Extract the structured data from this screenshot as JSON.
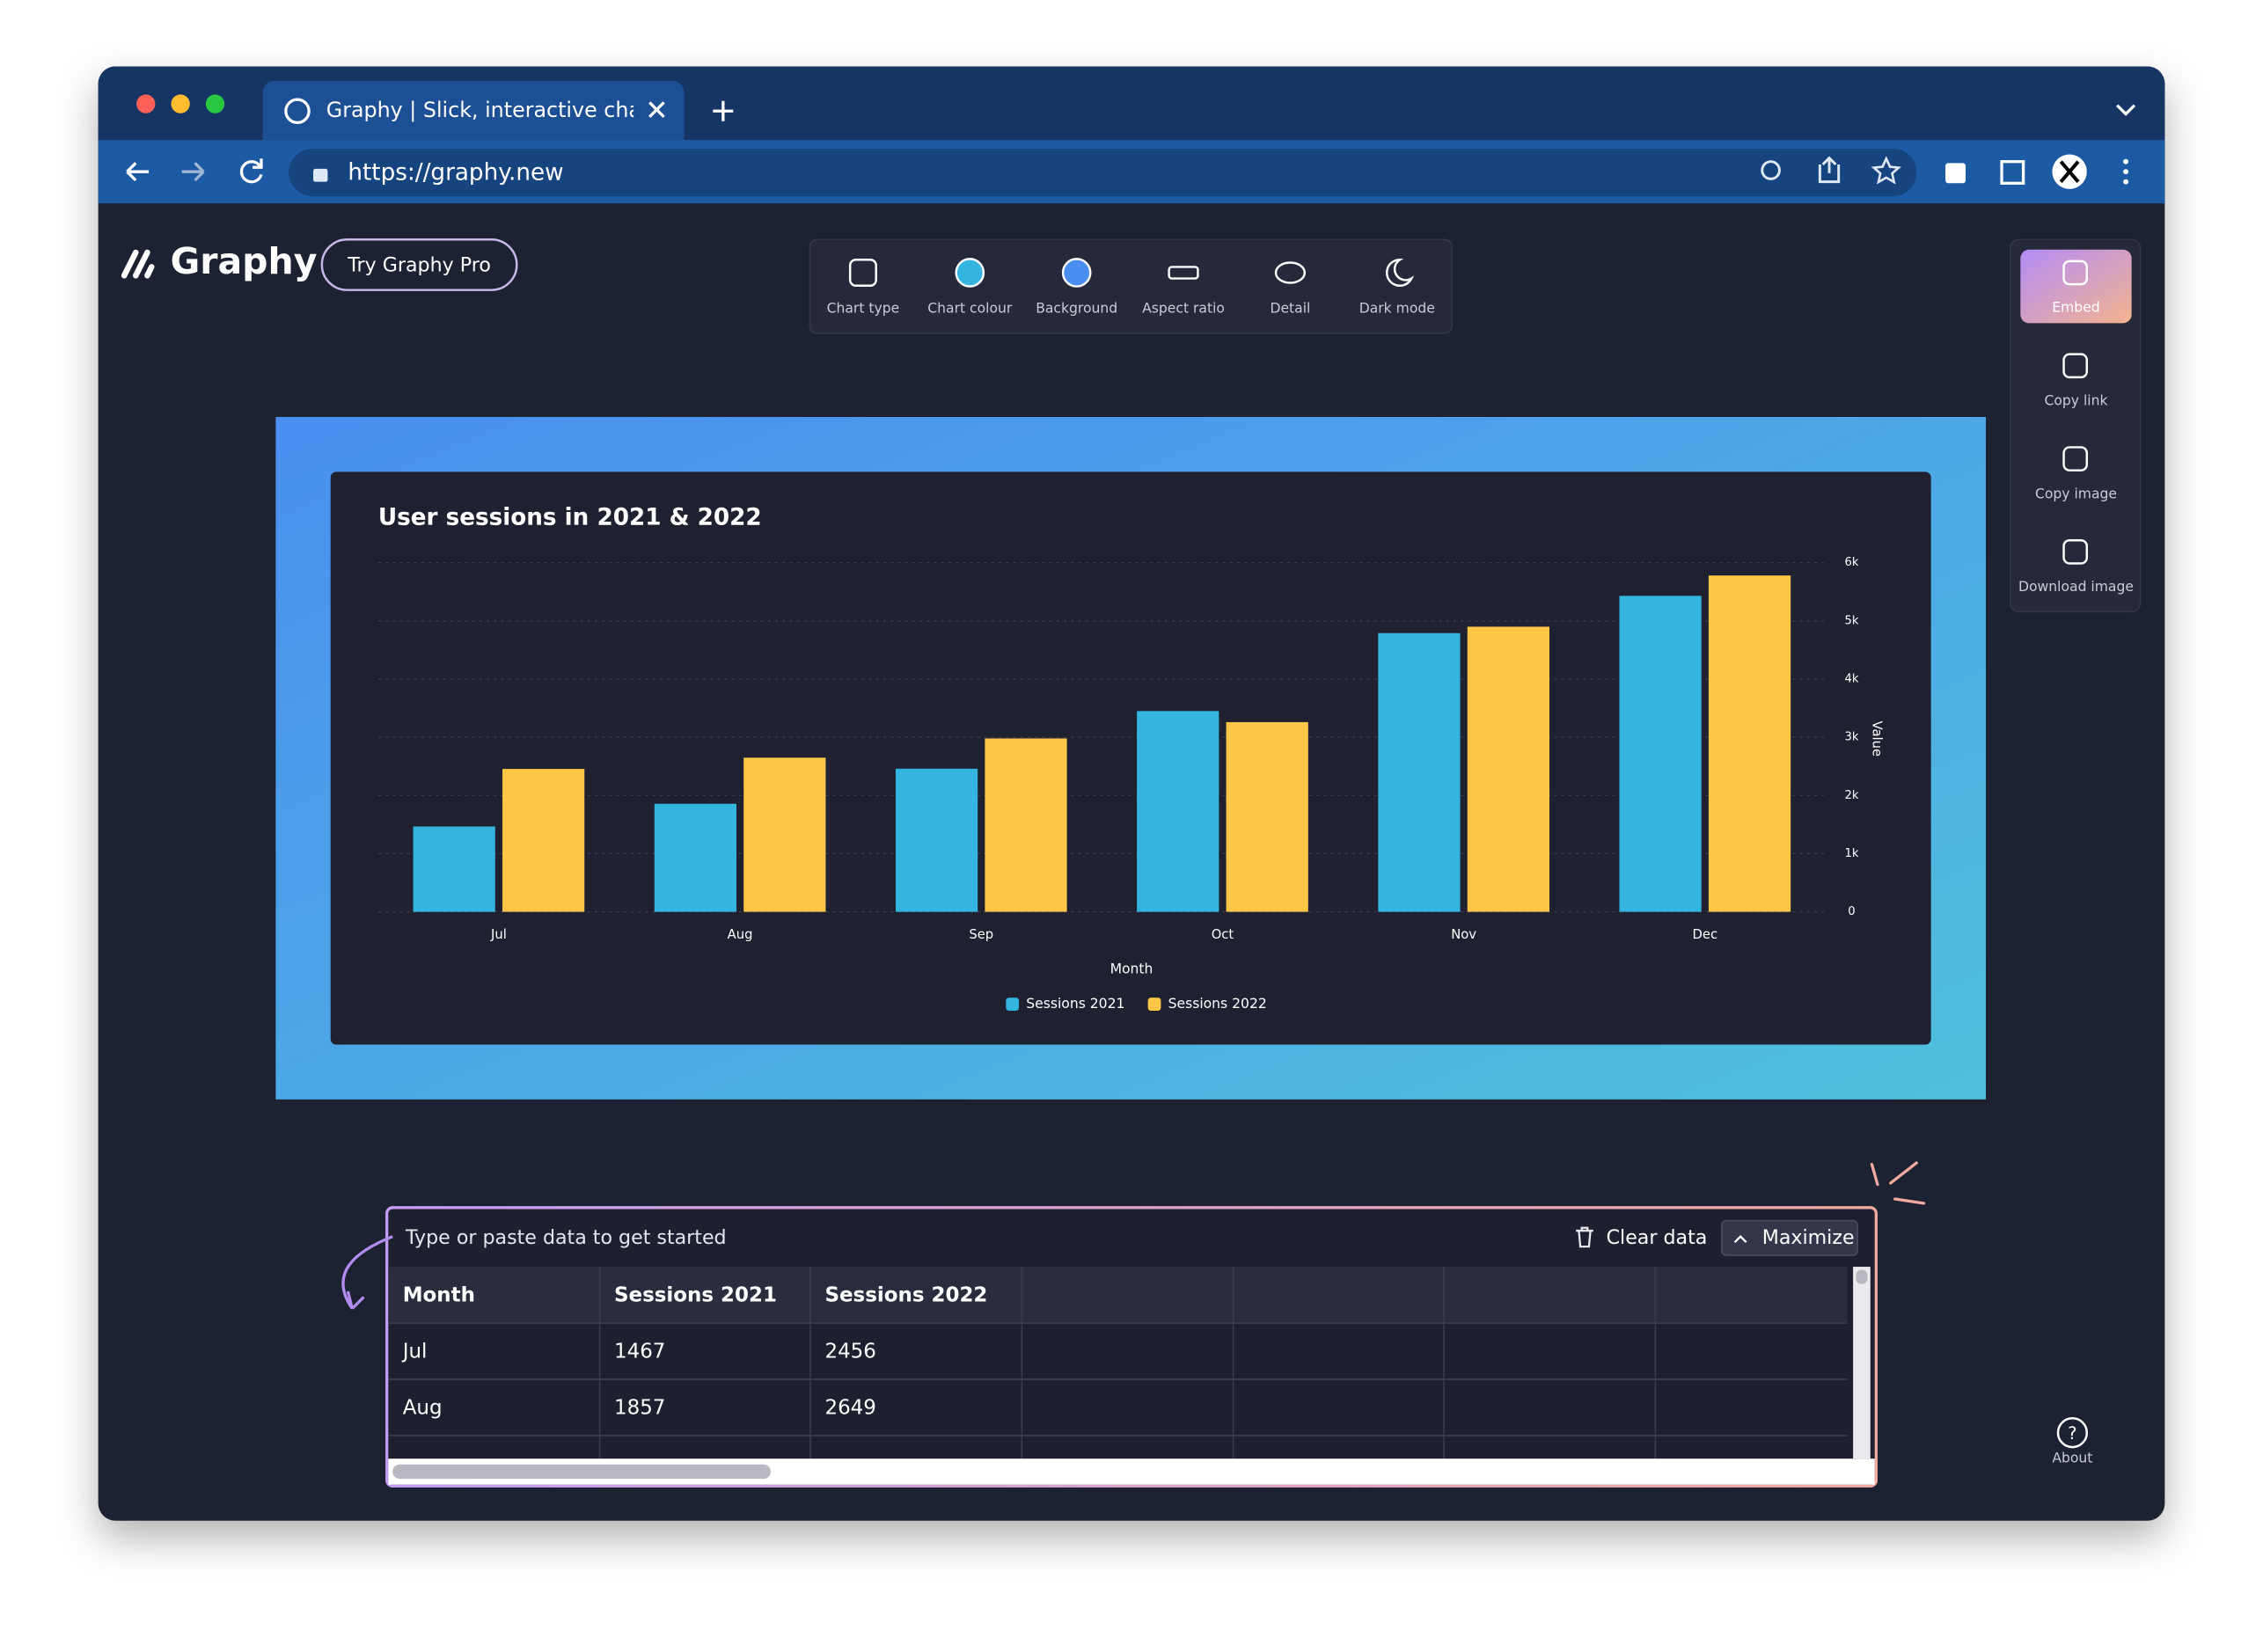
{
  "browser": {
    "tab_title": "Graphy | Slick, interactive chart",
    "url": "https://graphy.new"
  },
  "app": {
    "logo": "Graphy",
    "pro_button": "Try Graphy Pro",
    "toolbar": [
      "Chart type",
      "Chart colour",
      "Background",
      "Aspect ratio",
      "Detail",
      "Dark mode"
    ],
    "side_actions": [
      "Embed",
      "Copy link",
      "Copy image",
      "Download image"
    ],
    "about": "About"
  },
  "chart_data": {
    "type": "bar",
    "title": "User sessions in 2021 & 2022",
    "categories": [
      "Jul",
      "Aug",
      "Sep",
      "Oct",
      "Nov",
      "Dec"
    ],
    "series": [
      {
        "name": "Sessions 2021",
        "color": "#33b5e0",
        "values": [
          1467,
          1857,
          2460,
          3450,
          4790,
          5430
        ]
      },
      {
        "name": "Sessions 2022",
        "color": "#fdc647",
        "values": [
          2456,
          2649,
          2980,
          3260,
          4900,
          5780
        ]
      }
    ],
    "x_label": "Month",
    "y_label": "Value",
    "ylim": [
      0,
      6000
    ],
    "yticks": [
      0,
      {
        "value": 1000,
        "label": "1k"
      },
      {
        "value": 2000,
        "label": "2k"
      },
      {
        "value": 3000,
        "label": "3k"
      },
      {
        "value": 4000,
        "label": "4k"
      },
      {
        "value": 5000,
        "label": "5k"
      },
      {
        "value": 6000,
        "label": "6k"
      }
    ],
    "grid": true,
    "legend": "bottom"
  },
  "data_panel": {
    "prompt": "Type or paste data to get started",
    "clear": "Clear data",
    "maximize": "Maximize"
  },
  "table": {
    "header": [
      "Month",
      "Sessions 2021",
      "Sessions 2022"
    ],
    "rows": [
      [
        "Jul",
        1467,
        2456
      ],
      [
        "Aug",
        1857,
        2649
      ]
    ]
  }
}
